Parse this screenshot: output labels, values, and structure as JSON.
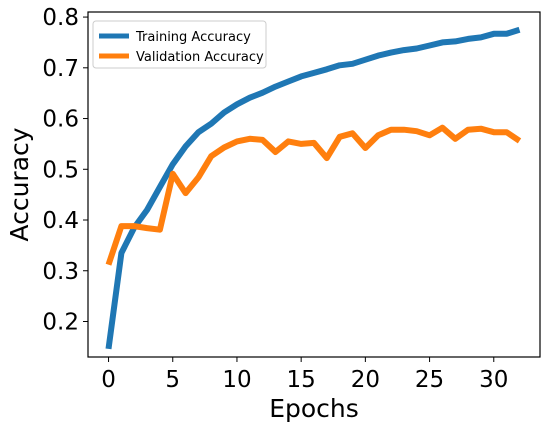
{
  "chart_data": {
    "type": "line",
    "xlabel": "Epochs",
    "ylabel": "Accuracy",
    "title": "",
    "xlim": [
      -1.6,
      33.6
    ],
    "ylim": [
      0.13,
      0.81
    ],
    "xticks": [
      0,
      5,
      10,
      15,
      20,
      25,
      30
    ],
    "yticks": [
      0.2,
      0.3,
      0.4,
      0.5,
      0.6,
      0.7,
      0.8
    ],
    "grid": false,
    "legend_position": "top-left",
    "x": [
      0,
      1,
      2,
      3,
      4,
      5,
      6,
      7,
      8,
      9,
      10,
      11,
      12,
      13,
      14,
      15,
      16,
      17,
      18,
      19,
      20,
      21,
      22,
      23,
      24,
      25,
      26,
      27,
      28,
      29,
      30,
      31,
      32
    ],
    "series": [
      {
        "name": "Training Accuracy",
        "color": "#1f77b4",
        "values": [
          0.146,
          0.335,
          0.385,
          0.42,
          0.465,
          0.51,
          0.545,
          0.573,
          0.59,
          0.612,
          0.628,
          0.641,
          0.651,
          0.663,
          0.673,
          0.683,
          0.69,
          0.697,
          0.705,
          0.708,
          0.716,
          0.724,
          0.73,
          0.735,
          0.738,
          0.744,
          0.75,
          0.752,
          0.757,
          0.76,
          0.767,
          0.767,
          0.775
        ]
      },
      {
        "name": "Validation Accuracy",
        "color": "#ff7f0e",
        "values": [
          0.312,
          0.388,
          0.388,
          0.384,
          0.381,
          0.491,
          0.453,
          0.484,
          0.526,
          0.543,
          0.555,
          0.56,
          0.558,
          0.534,
          0.555,
          0.55,
          0.552,
          0.522,
          0.564,
          0.571,
          0.542,
          0.567,
          0.578,
          0.578,
          0.575,
          0.567,
          0.582,
          0.56,
          0.578,
          0.58,
          0.573,
          0.573,
          0.556
        ]
      }
    ]
  }
}
